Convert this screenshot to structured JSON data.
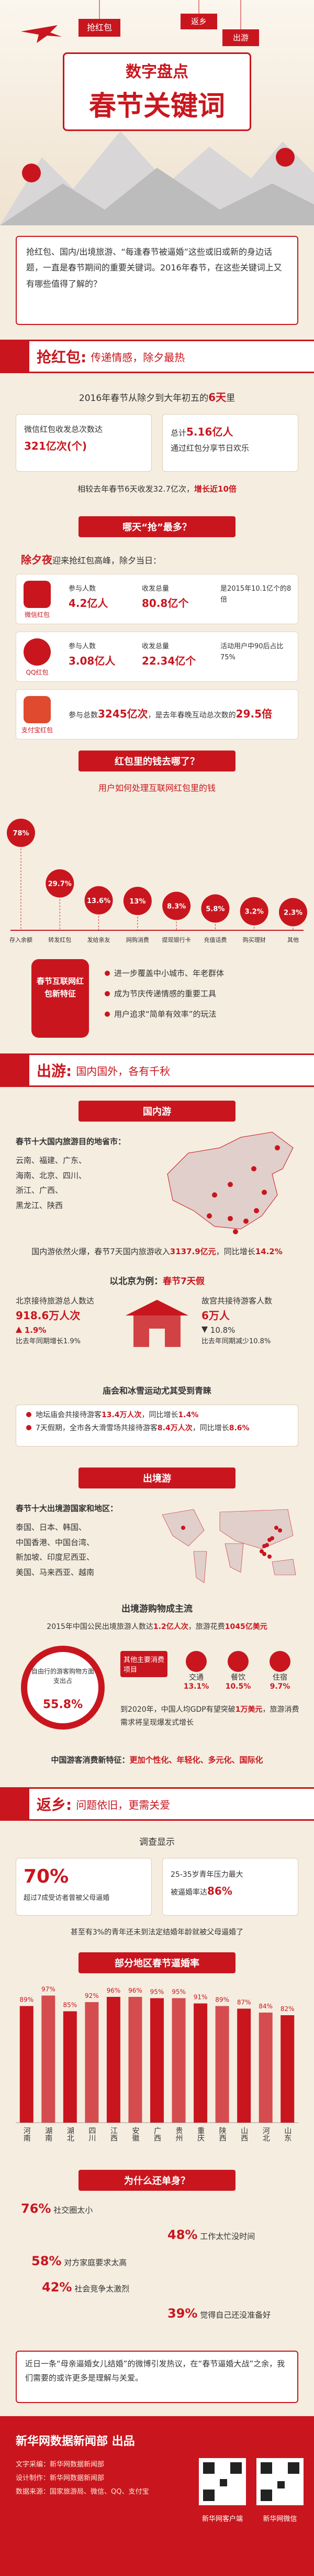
{
  "header": {
    "tags": [
      "抢红包",
      "返乡",
      "出游"
    ],
    "kicker": "数字盘点",
    "title": "春节关键词"
  },
  "intro": "抢红包、国内/出境旅游、“每逢春节被逼婚”这些或旧或新的身边话题，一直是春节期间的重要关键词。2016年春节，在这些关键词上又有哪些值得了解的？",
  "hongbao": {
    "heading": "抢红包:",
    "subheading": "传递情感，除夕最热",
    "lead": [
      "2016年春节从除夕到大年初五的",
      "6天",
      "里"
    ],
    "wechat_total": [
      "微信红包收发总次数达",
      "321亿次(个)"
    ],
    "users_total": [
      "总计",
      "5.16亿人",
      "通过红包分享节日欢乐"
    ],
    "compare": [
      "相较去年春节6天收发32.7亿次，",
      "增长近10倍"
    ],
    "which_day": "哪天“抢”最多？",
    "eve": [
      "除夕夜",
      "迎来抢红包高峰，除夕当日："
    ],
    "wechat": {
      "name": "微信红包",
      "participants_label": "参与人数",
      "participants": "4.2亿人",
      "volume_label": "收发总量",
      "volume": "80.8亿个",
      "note": "是2015年10.1亿个的8倍"
    },
    "qq": {
      "name": "QQ红包",
      "participants_label": "参与人数",
      "participants": "3.08亿人",
      "volume_label": "收发总量",
      "volume": "22.34亿个",
      "note": "活动用户中90后占比75%"
    },
    "alipay": {
      "name": "支付宝红包",
      "text": [
        "参与总数",
        "3245亿次",
        "，是去年春晚互动总次数的",
        "29.5倍"
      ]
    }
  },
  "usage": {
    "heading": "红包里的钱去哪了？"
  },
  "features": {
    "title": "春节互联网红包新特征",
    "items": [
      "进一步覆盖中小城市、年老群体",
      "成为节庆传递情感的重要工具",
      "用户追求“简单有效率”的玩法"
    ]
  },
  "travel": {
    "heading": "出游:",
    "subheading": "国内国外，各有千秋",
    "domestic": {
      "banner": "国内游",
      "top_title": "春节十大国内旅游目的地省市：",
      "top_list": [
        "云南、福建、广东、",
        "海南、北京、四川、",
        "浙江、广西、",
        "黑龙江、陕西"
      ],
      "summary": [
        "国内游依然火爆，春节7天国内旅游收入",
        "3137.9亿元",
        "，同比增长",
        "14.2%"
      ]
    },
    "beijing": {
      "title": [
        "以北京为例：",
        "春节7天假"
      ],
      "visitors_label": "北京接待旅游总人数达",
      "visitors": "918.6万人次",
      "visitors_change": "1.9%",
      "visitors_note": "比去年同期增长1.9%",
      "site_label": "故宫共接待游客人数",
      "site": "6万人",
      "site_change": "10.8%",
      "site_note": "比去年同期减少10.8%",
      "fair_title": "庙会和冰雪运动尤其受到青睐",
      "fair_items": [
        [
          "地坛庙会共接待游客",
          "13.4万人次",
          "，同比增长",
          "1.4%"
        ],
        [
          "7天假期，全市各大滑雪场共接待游客",
          "8.4万人次",
          "，同比增长",
          "8.6%"
        ]
      ]
    },
    "outbound": {
      "banner": "出境游",
      "top_title": "春节十大出境游国家和地区：",
      "top_list": [
        "泰国、日本、韩国、",
        "中国香港、中国台湾、",
        "新加坡、印度尼西亚、",
        "美国、马来西亚、越南"
      ],
      "shopping_title": "出境游购物成主流",
      "shopping_lead": [
        "2015年中国公民出境旅游人数达",
        "1.2亿人次",
        "，旅游花费",
        "1045亿美元"
      ],
      "free_label": "自由行的游客购物方面支出占",
      "free_value": "55.8%",
      "other_label": "其他主要消费项目",
      "spend": [
        {
          "name": "交通",
          "value": "13.1%"
        },
        {
          "name": "餐饮",
          "value": "10.5%"
        },
        {
          "name": "住宿",
          "value": "9.7%"
        }
      ],
      "outlook": [
        "到2020年，中国人均GDP有望突破",
        "1万美元",
        "，旅游消费需求将呈现爆发式增长"
      ],
      "traits": [
        "中国游客消费新特征：",
        "更加个性化、年轻化、多元化、国际化"
      ]
    }
  },
  "homecoming": {
    "heading": "返乡:",
    "subheading": "问题依旧，更需关爱",
    "survey": "调查显示",
    "pressure_value": "70%",
    "pressure_text": "超过7成受访者曾被父母逼婚",
    "youth_label": "25-35岁青年压力最大",
    "youth_text": [
      "被逼婚率达",
      "86%"
    ],
    "minor": "甚至有3%的青年还未到法定结婚年龄就被父母逼婚了",
    "why_title": "为什么还单身？",
    "why": [
      {
        "pct": "76%",
        "text": "社交圈太小"
      },
      {
        "pct": "48%",
        "text": "工作太忙没时间"
      },
      {
        "pct": "58%",
        "text": "对方家庭要求太高"
      },
      {
        "pct": "42%",
        "text": "社会竞争太激烈"
      },
      {
        "pct": "39%",
        "text": "觉得自己还没准备好"
      }
    ],
    "closing": "近日一条“母亲逼婚女儿结婚”的微博引发热议，在“春节逼婚大战”之余，我们需要的或许更多是理解与关爱。"
  },
  "footer": {
    "producer": "新华网数据新闻部 出品",
    "credits": [
      "文字采编：新华网数据新闻部",
      "设计制作：新华网数据新闻部",
      "数据来源：国家旅游局、微信、QQ、支付宝"
    ],
    "app": "新华网客户端",
    "wechat": "新华网微信"
  },
  "chart_data": [
    {
      "type": "circle",
      "title": "用户如何处理互联网红包里的钱",
      "color": "#c9161e",
      "categories": [
        "存入余额",
        "转发红包",
        "发给亲友",
        "网购消费",
        "提现银行卡",
        "充值话费",
        "购买理财",
        "其他"
      ],
      "values": [
        78,
        29.7,
        13.6,
        13,
        8.3,
        5.8,
        3.2,
        2.3
      ],
      "value_labels": [
        "78%",
        "29.7%",
        "13.6%",
        "13%",
        "8.3%",
        "5.8%",
        "3.2%",
        "2.3%"
      ]
    },
    {
      "type": "bar",
      "title": "部分地区春节逼婚率",
      "color": "#c9161e",
      "categories": [
        "河南",
        "湖南",
        "湖北",
        "四川",
        "江西",
        "安徽",
        "广西",
        "贵州",
        "重庆",
        "陕西",
        "山西",
        "河北",
        "山东"
      ],
      "values": [
        89,
        97,
        85,
        92,
        96,
        96,
        95,
        95,
        91,
        89,
        87,
        84,
        82
      ],
      "value_labels": [
        "89%",
        "97%",
        "85%",
        "92%",
        "96%",
        "96%",
        "95%",
        "95%",
        "91%",
        "89%",
        "87%",
        "84%",
        "82%"
      ]
    }
  ]
}
